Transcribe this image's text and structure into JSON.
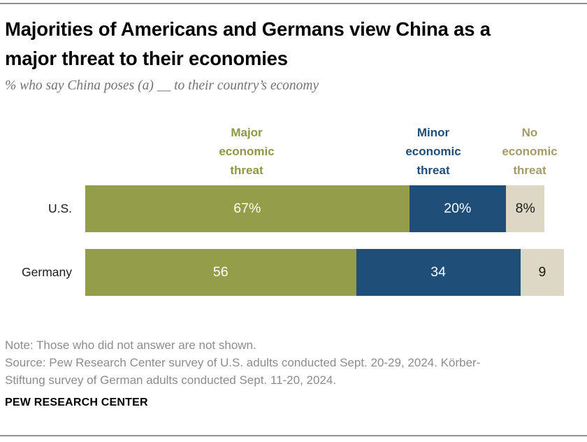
{
  "header": {
    "title_lines": [
      "Majorities of Americans and Germans view China as a",
      "major threat to their economies"
    ],
    "subtitle": "% who say China poses (a) __ to their country’s economy"
  },
  "chart_data": {
    "type": "bar",
    "orientation": "horizontal",
    "stacked": true,
    "unit": "percent",
    "xlim": [
      0,
      100
    ],
    "grid": false,
    "legend_position": "top",
    "categories": [
      "U.S.",
      "Germany"
    ],
    "series": [
      {
        "name": "Major economic threat",
        "color": "#949e48",
        "legend_text_color": "#8e9744",
        "values": [
          67,
          56
        ]
      },
      {
        "name": "Minor economic threat",
        "color": "#1f4e79",
        "legend_text_color": "#1f4e79",
        "values": [
          20,
          34
        ]
      },
      {
        "name": "No economic threat",
        "color": "#ddd8c6",
        "legend_text_color": "#a59a6b",
        "values": [
          8,
          9
        ]
      }
    ],
    "value_labels": [
      [
        "67%",
        "20%",
        "8%"
      ],
      [
        "56",
        "34",
        "9"
      ]
    ],
    "value_label_colors": [
      "#ffffff",
      "#ffffff",
      "#1a1a1a"
    ]
  },
  "footer": {
    "note": "Note: Those who did not answer are not shown.",
    "source_lines": [
      "Source: Pew Research Center survey of U.S. adults conducted Sept. 20-29, 2024. Körber-",
      "Stiftung survey of German adults conducted Sept. 11-20, 2024."
    ],
    "brand": "PEW RESEARCH CENTER"
  }
}
